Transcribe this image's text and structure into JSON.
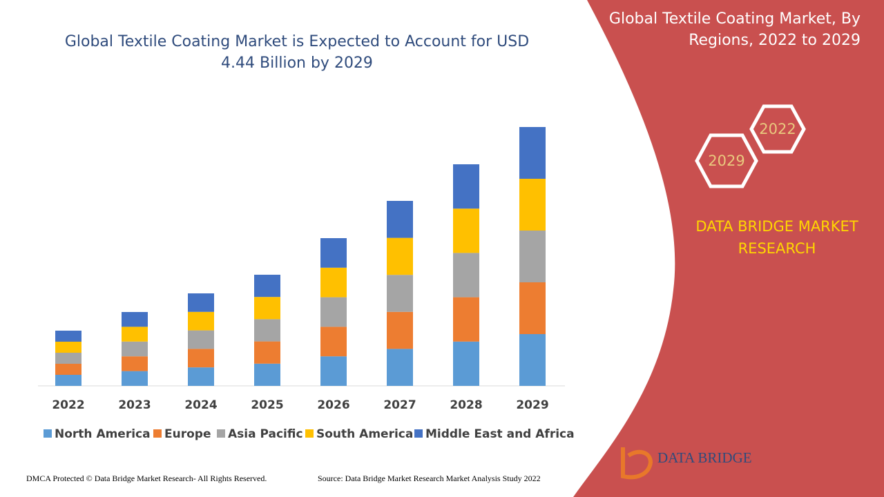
{
  "chart_data": {
    "type": "stacked-bar",
    "title": "Global Textile Coating Market is Expected to Account for USD 4.44 Billion by 2029",
    "categories": [
      "2022",
      "2023",
      "2024",
      "2025",
      "2026",
      "2027",
      "2028",
      "2029"
    ],
    "series": [
      {
        "name": "North America",
        "color": "#5b9bd5",
        "values": [
          16,
          21.4,
          26.8,
          32.2,
          42.8,
          53.6,
          64.2,
          75
        ]
      },
      {
        "name": "Europe",
        "color": "#ed7d31",
        "values": [
          16,
          21.4,
          26.8,
          32.2,
          42.8,
          53.6,
          64.2,
          75
        ]
      },
      {
        "name": "Asia Pacific",
        "color": "#a5a5a5",
        "values": [
          16,
          21.4,
          26.8,
          32.2,
          42.8,
          53.6,
          64.2,
          75
        ]
      },
      {
        "name": "South America",
        "color": "#ffc000",
        "values": [
          16,
          21.4,
          26.8,
          32.2,
          42.8,
          53.6,
          64.2,
          75
        ]
      },
      {
        "name": "Middle East and Africa",
        "color": "#4472c4",
        "values": [
          16,
          21.4,
          26.8,
          32.2,
          42.8,
          53.6,
          64.2,
          75
        ]
      }
    ],
    "ylim": [
      0,
      400
    ]
  },
  "side_panel": {
    "title": "Global Textile Coating Market, By Regions, 2022 to 2029",
    "hex_start": "2022",
    "hex_end": "2029",
    "brand": "DATA BRIDGE MARKET RESEARCH"
  },
  "footer": {
    "copyright": "DMCA Protected © Data Bridge Market Research- All Rights Reserved.",
    "source": "Source: Data Bridge Market Research Market Analysis Study 2022",
    "logo": "DATA BRIDGE"
  }
}
